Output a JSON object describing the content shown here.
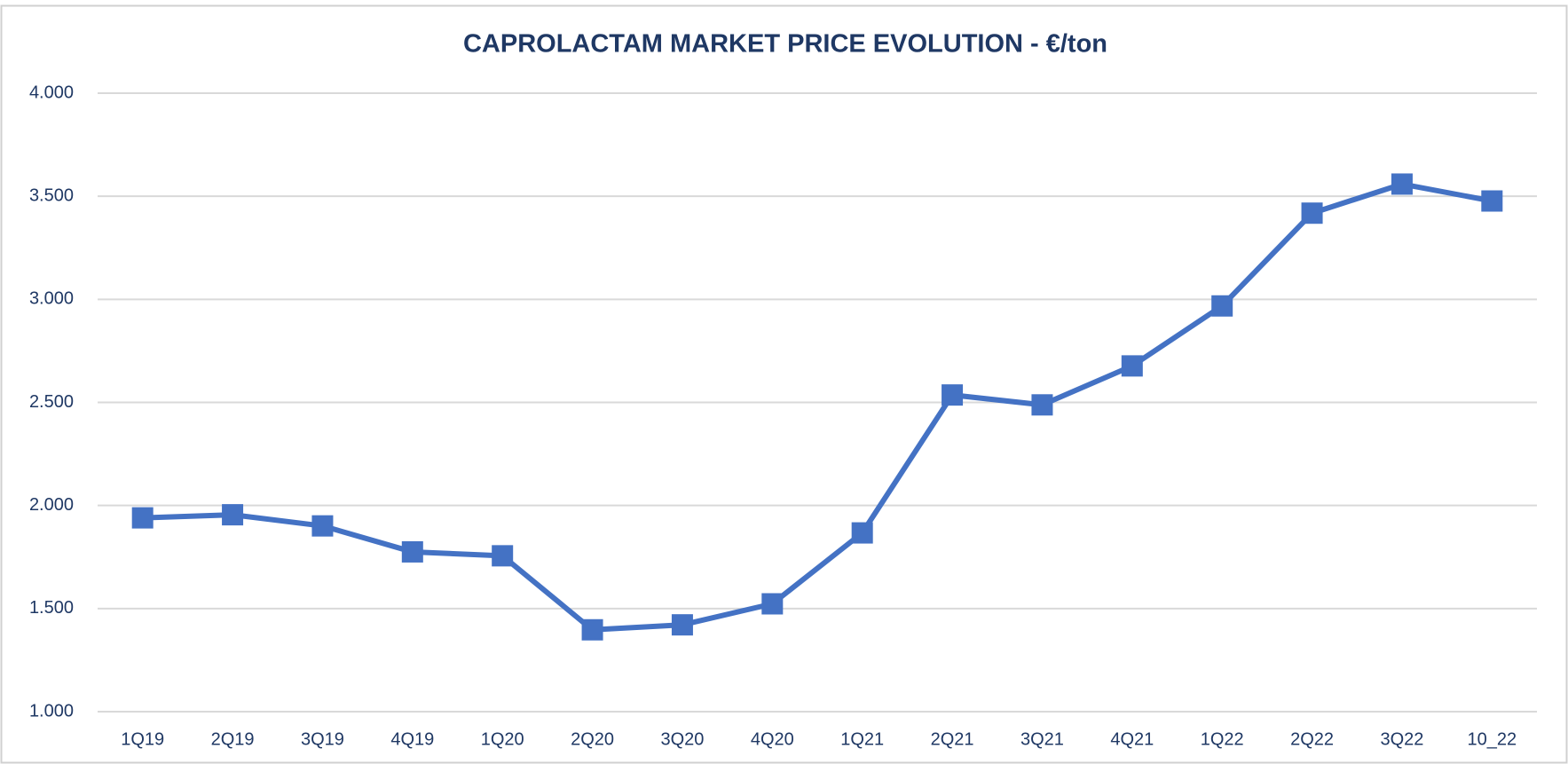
{
  "chart_data": {
    "type": "line",
    "title": "CAPROLACTAM MARKET PRICE EVOLUTION - €/ton",
    "categories": [
      "1Q19",
      "2Q19",
      "3Q19",
      "4Q19",
      "1Q20",
      "2Q20",
      "3Q20",
      "4Q20",
      "1Q21",
      "2Q21",
      "3Q21",
      "4Q21",
      "1Q22",
      "2Q22",
      "3Q22",
      "10_22"
    ],
    "series": [
      {
        "name": "Caprolactam",
        "color": "#4472c4",
        "values": [
          1940,
          1955,
          1901,
          1775,
          1756,
          1397,
          1421,
          1523,
          1867,
          2536,
          2488,
          2677,
          2968,
          3418,
          3559,
          3477
        ]
      }
    ],
    "ylim": [
      1000,
      4000
    ],
    "yticks": [
      {
        "value": 1000,
        "label": "1.000"
      },
      {
        "value": 1500,
        "label": "1.500"
      },
      {
        "value": 2000,
        "label": "2.000"
      },
      {
        "value": 2500,
        "label": "2.500"
      },
      {
        "value": 3000,
        "label": "3.000"
      },
      {
        "value": 3500,
        "label": "3.500"
      },
      {
        "value": 4000,
        "label": "4.000"
      }
    ],
    "grid": true
  }
}
